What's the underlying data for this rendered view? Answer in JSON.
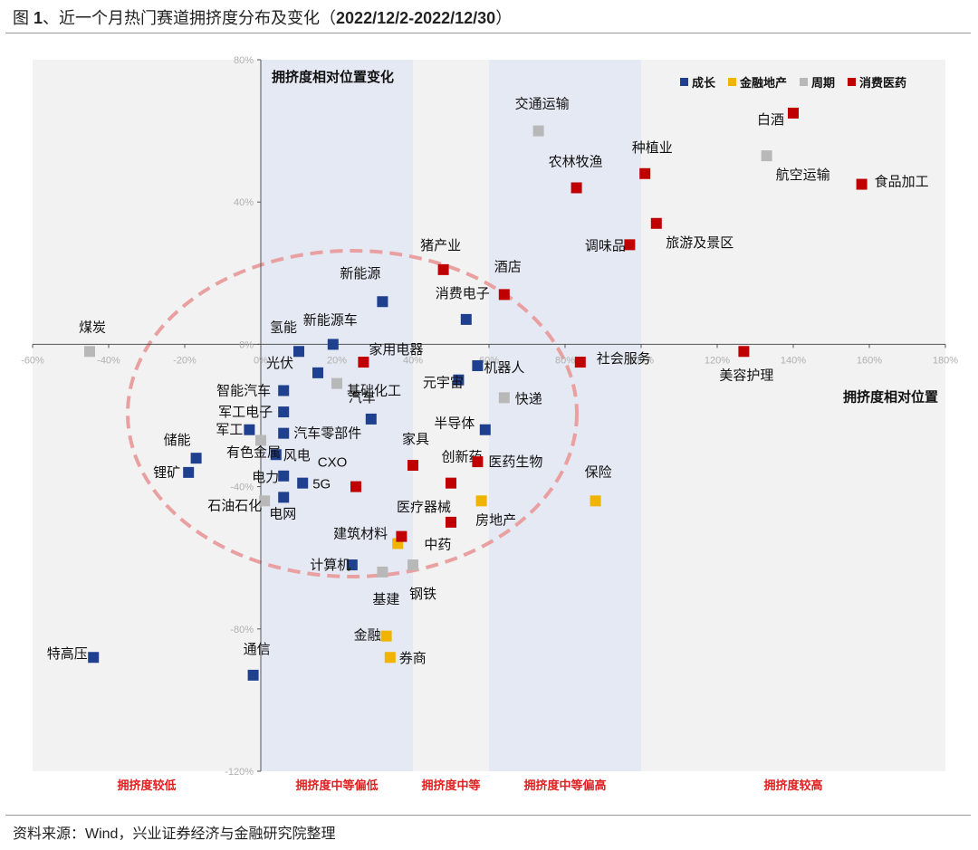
{
  "figure": {
    "title_prefix": "图 ",
    "title_number": "1",
    "title_main": "、近一个月热门赛道拥挤度分布及变化（",
    "title_dates": "2022/12/2-2022/12/30",
    "title_end": "）",
    "source": "资料来源：Wind，兴业证券经济与金融研究院整理"
  },
  "chart_data": {
    "type": "scatter",
    "title": "拥挤度相对位置变化",
    "xlabel": "拥挤度相对位置",
    "xlim": [
      -60,
      180
    ],
    "ylim": [
      -120,
      80
    ],
    "x_ticks": [
      -60,
      -40,
      -20,
      0,
      20,
      40,
      60,
      80,
      100,
      120,
      140,
      160,
      180
    ],
    "y_ticks": [
      -120,
      -80,
      -40,
      0,
      40,
      80
    ],
    "x_tick_labels": [
      "-60%",
      "-40%",
      "-20%",
      "0%",
      "20%",
      "40%",
      "60%",
      "80%",
      "100%",
      "120%",
      "140%",
      "160%",
      "180%"
    ],
    "y_tick_labels": [
      "-120%",
      "-80%",
      "-40%",
      "0%",
      "40%",
      "80%"
    ],
    "legend_position": "top-right",
    "grid": false,
    "zones": [
      {
        "label": "拥挤度较低",
        "x_range": [
          -60,
          0
        ],
        "color": "#f2f2f2"
      },
      {
        "label": "拥挤度中等偏低",
        "x_range": [
          0,
          40
        ],
        "color": "#e5e9f3"
      },
      {
        "label": "拥挤度中等",
        "x_range": [
          40,
          60
        ],
        "color": "#f2f2f2"
      },
      {
        "label": "拥挤度中等偏高",
        "x_range": [
          60,
          100
        ],
        "color": "#e5e9f3"
      },
      {
        "label": "拥挤度较高",
        "x_range": [
          100,
          180
        ],
        "color": "#f2f2f2"
      }
    ],
    "series": [
      {
        "name": "成长",
        "color": "#1f3f8f",
        "points": [
          {
            "label": "新能源",
            "x": 32,
            "y": 12
          },
          {
            "label": "消费电子",
            "x": 54,
            "y": 7
          },
          {
            "label": "氢能",
            "x": 10,
            "y": -2
          },
          {
            "label": "新能源车",
            "x": 19,
            "y": 0
          },
          {
            "label": "光伏",
            "x": 15,
            "y": -8
          },
          {
            "label": "智能汽车",
            "x": 6,
            "y": -13
          },
          {
            "label": "军工电子",
            "x": 6,
            "y": -19
          },
          {
            "label": "汽车零部件",
            "x": 6,
            "y": -25
          },
          {
            "label": "军工",
            "x": -3,
            "y": -24
          },
          {
            "label": "风电",
            "x": 4,
            "y": -31
          },
          {
            "label": "储能",
            "x": -17,
            "y": -32
          },
          {
            "label": "锂矿",
            "x": -19,
            "y": -36
          },
          {
            "label": "电力",
            "x": 6,
            "y": -37
          },
          {
            "label": "5G",
            "x": 11,
            "y": -39
          },
          {
            "label": "电网",
            "x": 6,
            "y": -43
          },
          {
            "label": "元宇宙",
            "x": 52,
            "y": -10
          },
          {
            "label": "机器人",
            "x": 57,
            "y": -6
          },
          {
            "label": "半导体",
            "x": 59,
            "y": -24
          },
          {
            "label": "计算机",
            "x": 24,
            "y": -62
          },
          {
            "label": "特高压",
            "x": -44,
            "y": -88
          },
          {
            "label": "通信",
            "x": -2,
            "y": -93
          },
          {
            "label": "汽车",
            "x": 29,
            "y": -21
          }
        ]
      },
      {
        "name": "金融地产",
        "color": "#f0b400",
        "points": [
          {
            "label": "房地产",
            "x": 58,
            "y": -44
          },
          {
            "label": "保险",
            "x": 88,
            "y": -44
          },
          {
            "label": "建筑材料",
            "x": 36,
            "y": -56
          },
          {
            "label": "金融",
            "x": 33,
            "y": -82
          },
          {
            "label": "券商",
            "x": 34,
            "y": -88
          }
        ]
      },
      {
        "name": "周期",
        "color": "#b8b8b8",
        "points": [
          {
            "label": "交通运输",
            "x": 73,
            "y": 60
          },
          {
            "label": "航空运输",
            "x": 133,
            "y": 53
          },
          {
            "label": "煤炭",
            "x": -45,
            "y": -2
          },
          {
            "label": "基础化工",
            "x": 20,
            "y": -11
          },
          {
            "label": "快递",
            "x": 64,
            "y": -15
          },
          {
            "label": "有色金属",
            "x": 0,
            "y": -27
          },
          {
            "label": "石油石化",
            "x": 1,
            "y": -44
          },
          {
            "label": "钢铁",
            "x": 40,
            "y": -62
          },
          {
            "label": "基建",
            "x": 32,
            "y": -64
          }
        ]
      },
      {
        "name": "消费医药",
        "color": "#c00000",
        "points": [
          {
            "label": "白酒",
            "x": 140,
            "y": 65
          },
          {
            "label": "食品加工",
            "x": 158,
            "y": 45
          },
          {
            "label": "种植业",
            "x": 101,
            "y": 48
          },
          {
            "label": "农林牧渔",
            "x": 83,
            "y": 44
          },
          {
            "label": "旅游及景区",
            "x": 104,
            "y": 34
          },
          {
            "label": "调味品",
            "x": 97,
            "y": 28
          },
          {
            "label": "猪产业",
            "x": 48,
            "y": 21
          },
          {
            "label": "酒店",
            "x": 64,
            "y": 14
          },
          {
            "label": "家用电器",
            "x": 27,
            "y": -5
          },
          {
            "label": "社会服务",
            "x": 84,
            "y": -5
          },
          {
            "label": "美容护理",
            "x": 127,
            "y": -2
          },
          {
            "label": "家具",
            "x": 40,
            "y": -34
          },
          {
            "label": "创新药",
            "x": 50,
            "y": -39
          },
          {
            "label": "医药生物",
            "x": 57,
            "y": -33
          },
          {
            "label": "CXO",
            "x": 25,
            "y": -40
          },
          {
            "label": "医疗器械",
            "x": 50,
            "y": -50
          },
          {
            "label": "中药",
            "x": 37,
            "y": -54
          }
        ]
      }
    ]
  }
}
